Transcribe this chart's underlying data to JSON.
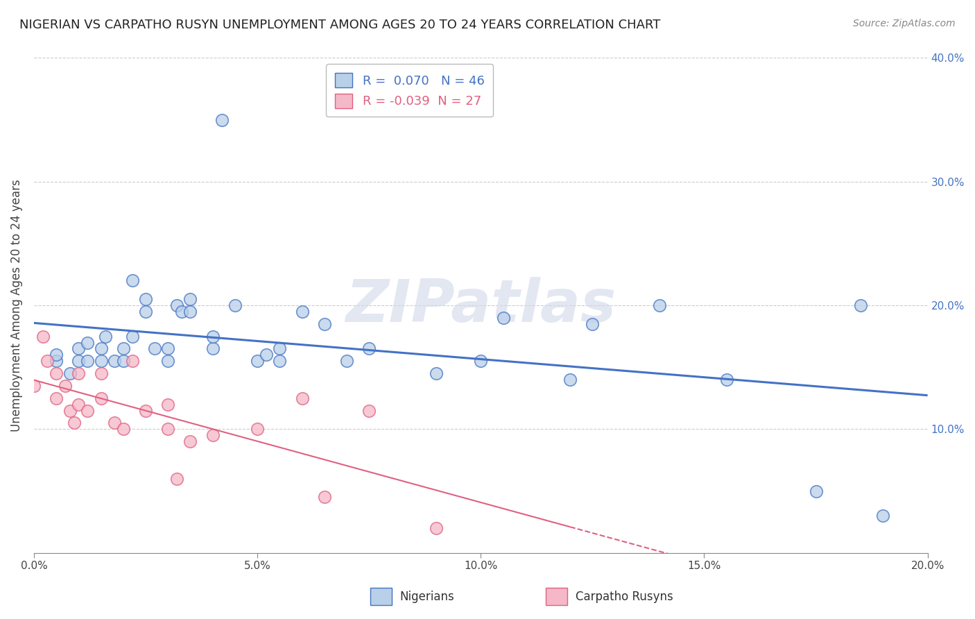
{
  "title": "NIGERIAN VS CARPATHO RUSYN UNEMPLOYMENT AMONG AGES 20 TO 24 YEARS CORRELATION CHART",
  "source": "Source: ZipAtlas.com",
  "ylabel": "Unemployment Among Ages 20 to 24 years",
  "xlim": [
    0,
    0.2
  ],
  "ylim": [
    0,
    0.4
  ],
  "xticks": [
    0.0,
    0.05,
    0.1,
    0.15,
    0.2
  ],
  "yticks": [
    0.0,
    0.1,
    0.2,
    0.3,
    0.4
  ],
  "ytick_labels_right": [
    "",
    "10.0%",
    "20.0%",
    "30.0%",
    "40.0%"
  ],
  "xtick_labels": [
    "0.0%",
    "5.0%",
    "10.0%",
    "15.0%",
    "20.0%"
  ],
  "legend_r_nigerian": " 0.070",
  "legend_n_nigerian": "46",
  "legend_r_rusyn": "-0.039",
  "legend_n_rusyn": "27",
  "nigerian_fill": "#b8d0e8",
  "nigerian_edge": "#4472c4",
  "rusyn_fill": "#f4b8c8",
  "rusyn_edge": "#e06080",
  "nigerian_line_color": "#4472c4",
  "rusyn_line_color": "#e06080",
  "watermark": "ZIPatlas",
  "nigerian_x": [
    0.005,
    0.005,
    0.008,
    0.01,
    0.01,
    0.012,
    0.012,
    0.015,
    0.015,
    0.016,
    0.018,
    0.02,
    0.02,
    0.022,
    0.022,
    0.025,
    0.025,
    0.027,
    0.03,
    0.03,
    0.032,
    0.033,
    0.035,
    0.035,
    0.04,
    0.04,
    0.042,
    0.045,
    0.05,
    0.052,
    0.055,
    0.055,
    0.06,
    0.065,
    0.07,
    0.075,
    0.09,
    0.1,
    0.105,
    0.12,
    0.125,
    0.14,
    0.155,
    0.175,
    0.185,
    0.19
  ],
  "nigerian_y": [
    0.155,
    0.16,
    0.145,
    0.155,
    0.165,
    0.155,
    0.17,
    0.155,
    0.165,
    0.175,
    0.155,
    0.155,
    0.165,
    0.175,
    0.22,
    0.195,
    0.205,
    0.165,
    0.155,
    0.165,
    0.2,
    0.195,
    0.195,
    0.205,
    0.165,
    0.175,
    0.35,
    0.2,
    0.155,
    0.16,
    0.155,
    0.165,
    0.195,
    0.185,
    0.155,
    0.165,
    0.145,
    0.155,
    0.19,
    0.14,
    0.185,
    0.2,
    0.14,
    0.05,
    0.2,
    0.03
  ],
  "rusyn_x": [
    0.0,
    0.002,
    0.003,
    0.005,
    0.005,
    0.007,
    0.008,
    0.009,
    0.01,
    0.01,
    0.012,
    0.015,
    0.015,
    0.018,
    0.02,
    0.022,
    0.025,
    0.03,
    0.03,
    0.032,
    0.035,
    0.04,
    0.05,
    0.06,
    0.065,
    0.075,
    0.09
  ],
  "rusyn_y": [
    0.135,
    0.175,
    0.155,
    0.145,
    0.125,
    0.135,
    0.115,
    0.105,
    0.145,
    0.12,
    0.115,
    0.145,
    0.125,
    0.105,
    0.1,
    0.155,
    0.115,
    0.12,
    0.1,
    0.06,
    0.09,
    0.095,
    0.1,
    0.125,
    0.045,
    0.115,
    0.02
  ]
}
